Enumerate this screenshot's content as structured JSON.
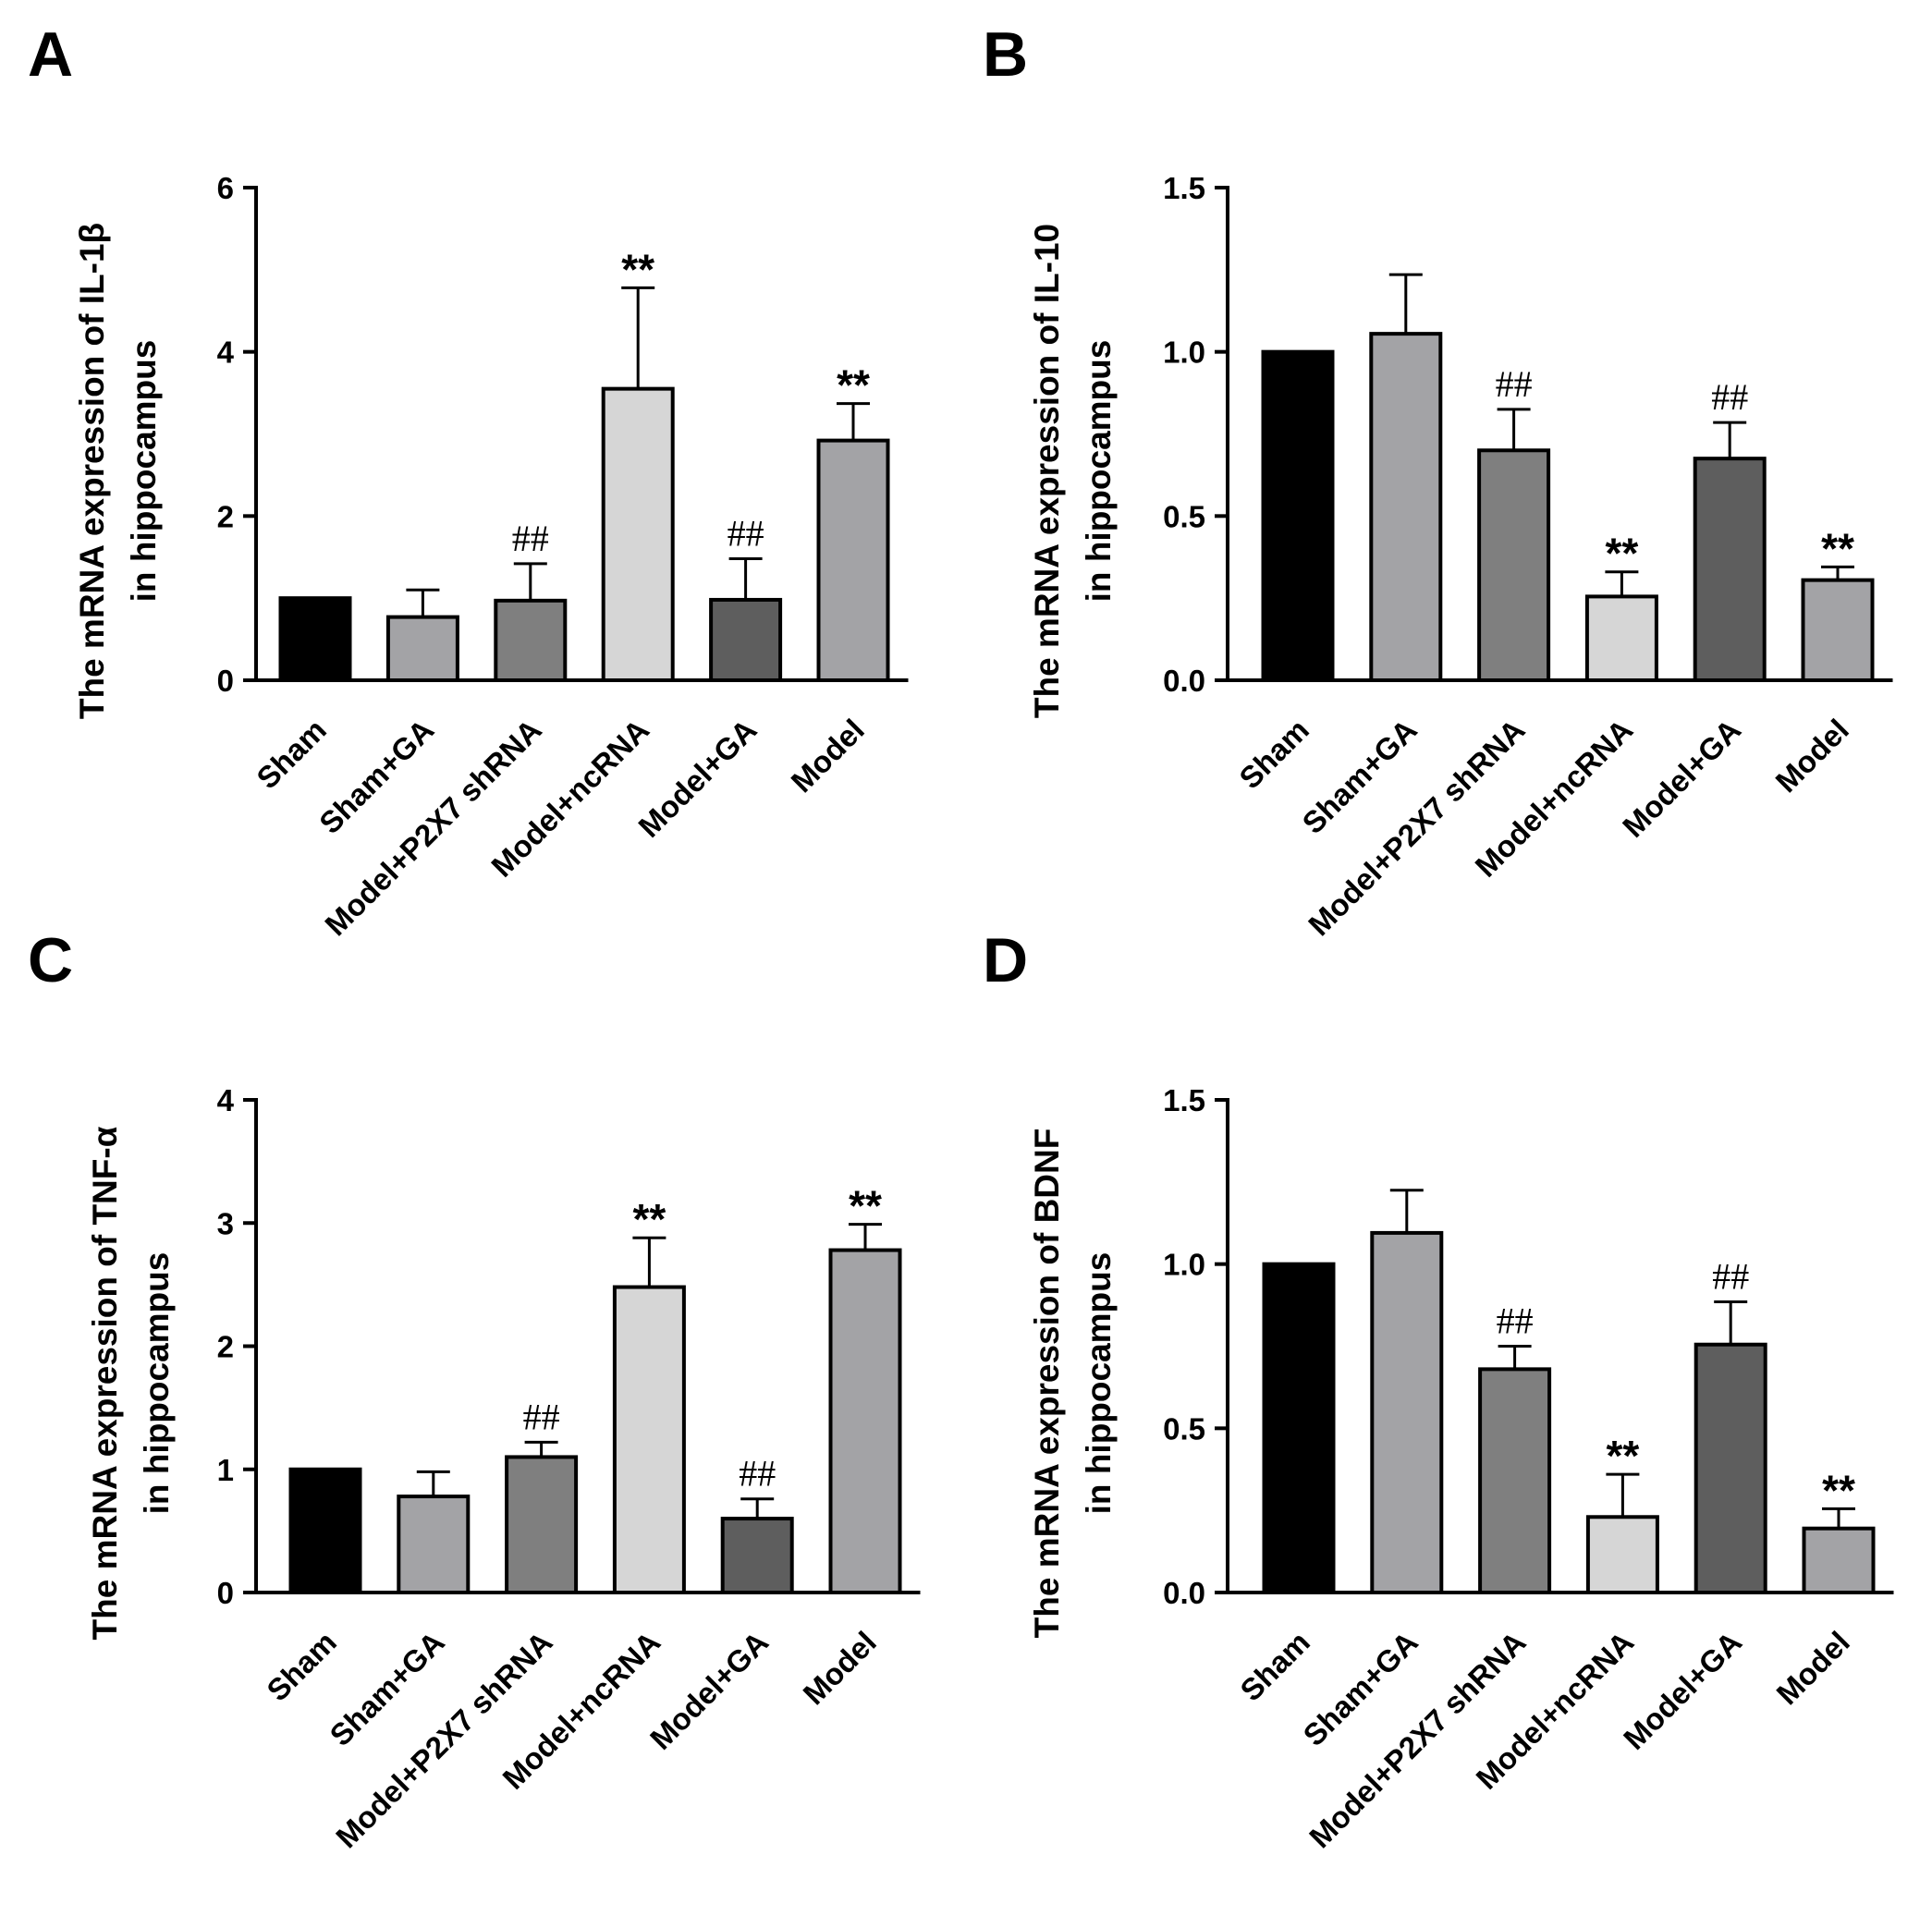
{
  "figure": {
    "colors": {
      "sham": "#000000",
      "sham_ga": "#a3a3a6",
      "model_p2x7": "#7f7f7f",
      "model_ncrna": "#d6d6d6",
      "model_ga": "#5e5e5e",
      "model": "#a3a3a6"
    }
  },
  "chart_data": [
    {
      "panel": "A",
      "type": "bar",
      "ylabel": [
        "The mRNA expression of IL-1β",
        "in hippocampus"
      ],
      "categories": [
        "Sham",
        "Sham+GA",
        "Model+P2X7 shRNA",
        "Model+ncRNA",
        "Model+GA",
        "Model"
      ],
      "values": [
        1.0,
        0.77,
        0.97,
        3.55,
        0.98,
        2.92
      ],
      "errors": [
        0.0,
        0.33,
        0.45,
        1.23,
        0.5,
        0.45
      ],
      "annotations": [
        "",
        "",
        "##",
        "**",
        "##",
        "**"
      ],
      "ylim": [
        0,
        6
      ],
      "yticks": [
        0,
        2,
        4,
        6
      ]
    },
    {
      "panel": "B",
      "type": "bar",
      "ylabel": [
        "The mRNA expression of IL-10",
        "in hippocampus"
      ],
      "categories": [
        "Sham",
        "Sham+GA",
        "Model+P2X7 shRNA",
        "Model+ncRNA",
        "Model+GA",
        "Model"
      ],
      "values": [
        1.0,
        1.055,
        0.7,
        0.255,
        0.675,
        0.305
      ],
      "errors": [
        0.0,
        0.18,
        0.125,
        0.075,
        0.11,
        0.04
      ],
      "annotations": [
        "",
        "",
        "##",
        "**",
        "##",
        "**"
      ],
      "ylim": [
        0,
        1.5
      ],
      "yticks": [
        "0.0",
        "0.5",
        "1.0",
        "1.5"
      ]
    },
    {
      "panel": "C",
      "type": "bar",
      "ylabel": [
        "The mRNA expression of TNF-α",
        "in hippocampus"
      ],
      "categories": [
        "Sham",
        "Sham+GA",
        "Model+P2X7 shRNA",
        "Model+ncRNA",
        "Model+GA",
        "Model"
      ],
      "values": [
        1.0,
        0.78,
        1.1,
        2.48,
        0.6,
        2.78
      ],
      "errors": [
        0.0,
        0.2,
        0.12,
        0.4,
        0.16,
        0.21
      ],
      "annotations": [
        "",
        "",
        "##",
        "**",
        "##",
        "**"
      ],
      "ylim": [
        0,
        4
      ],
      "yticks": [
        0,
        1,
        2,
        3,
        4
      ]
    },
    {
      "panel": "D",
      "type": "bar",
      "ylabel": [
        "The mRNA expression of BDNF",
        "in hippocampus"
      ],
      "categories": [
        "Sham",
        "Sham+GA",
        "Model+P2X7 shRNA",
        "Model+ncRNA",
        "Model+GA",
        "Model"
      ],
      "values": [
        1.0,
        1.095,
        0.68,
        0.23,
        0.755,
        0.195
      ],
      "errors": [
        0.0,
        0.13,
        0.07,
        0.13,
        0.13,
        0.06
      ],
      "annotations": [
        "",
        "",
        "##",
        "**",
        "##",
        "**"
      ],
      "ylim": [
        0,
        1.5
      ],
      "yticks": [
        "0.0",
        "0.5",
        "1.0",
        "1.5"
      ]
    }
  ]
}
